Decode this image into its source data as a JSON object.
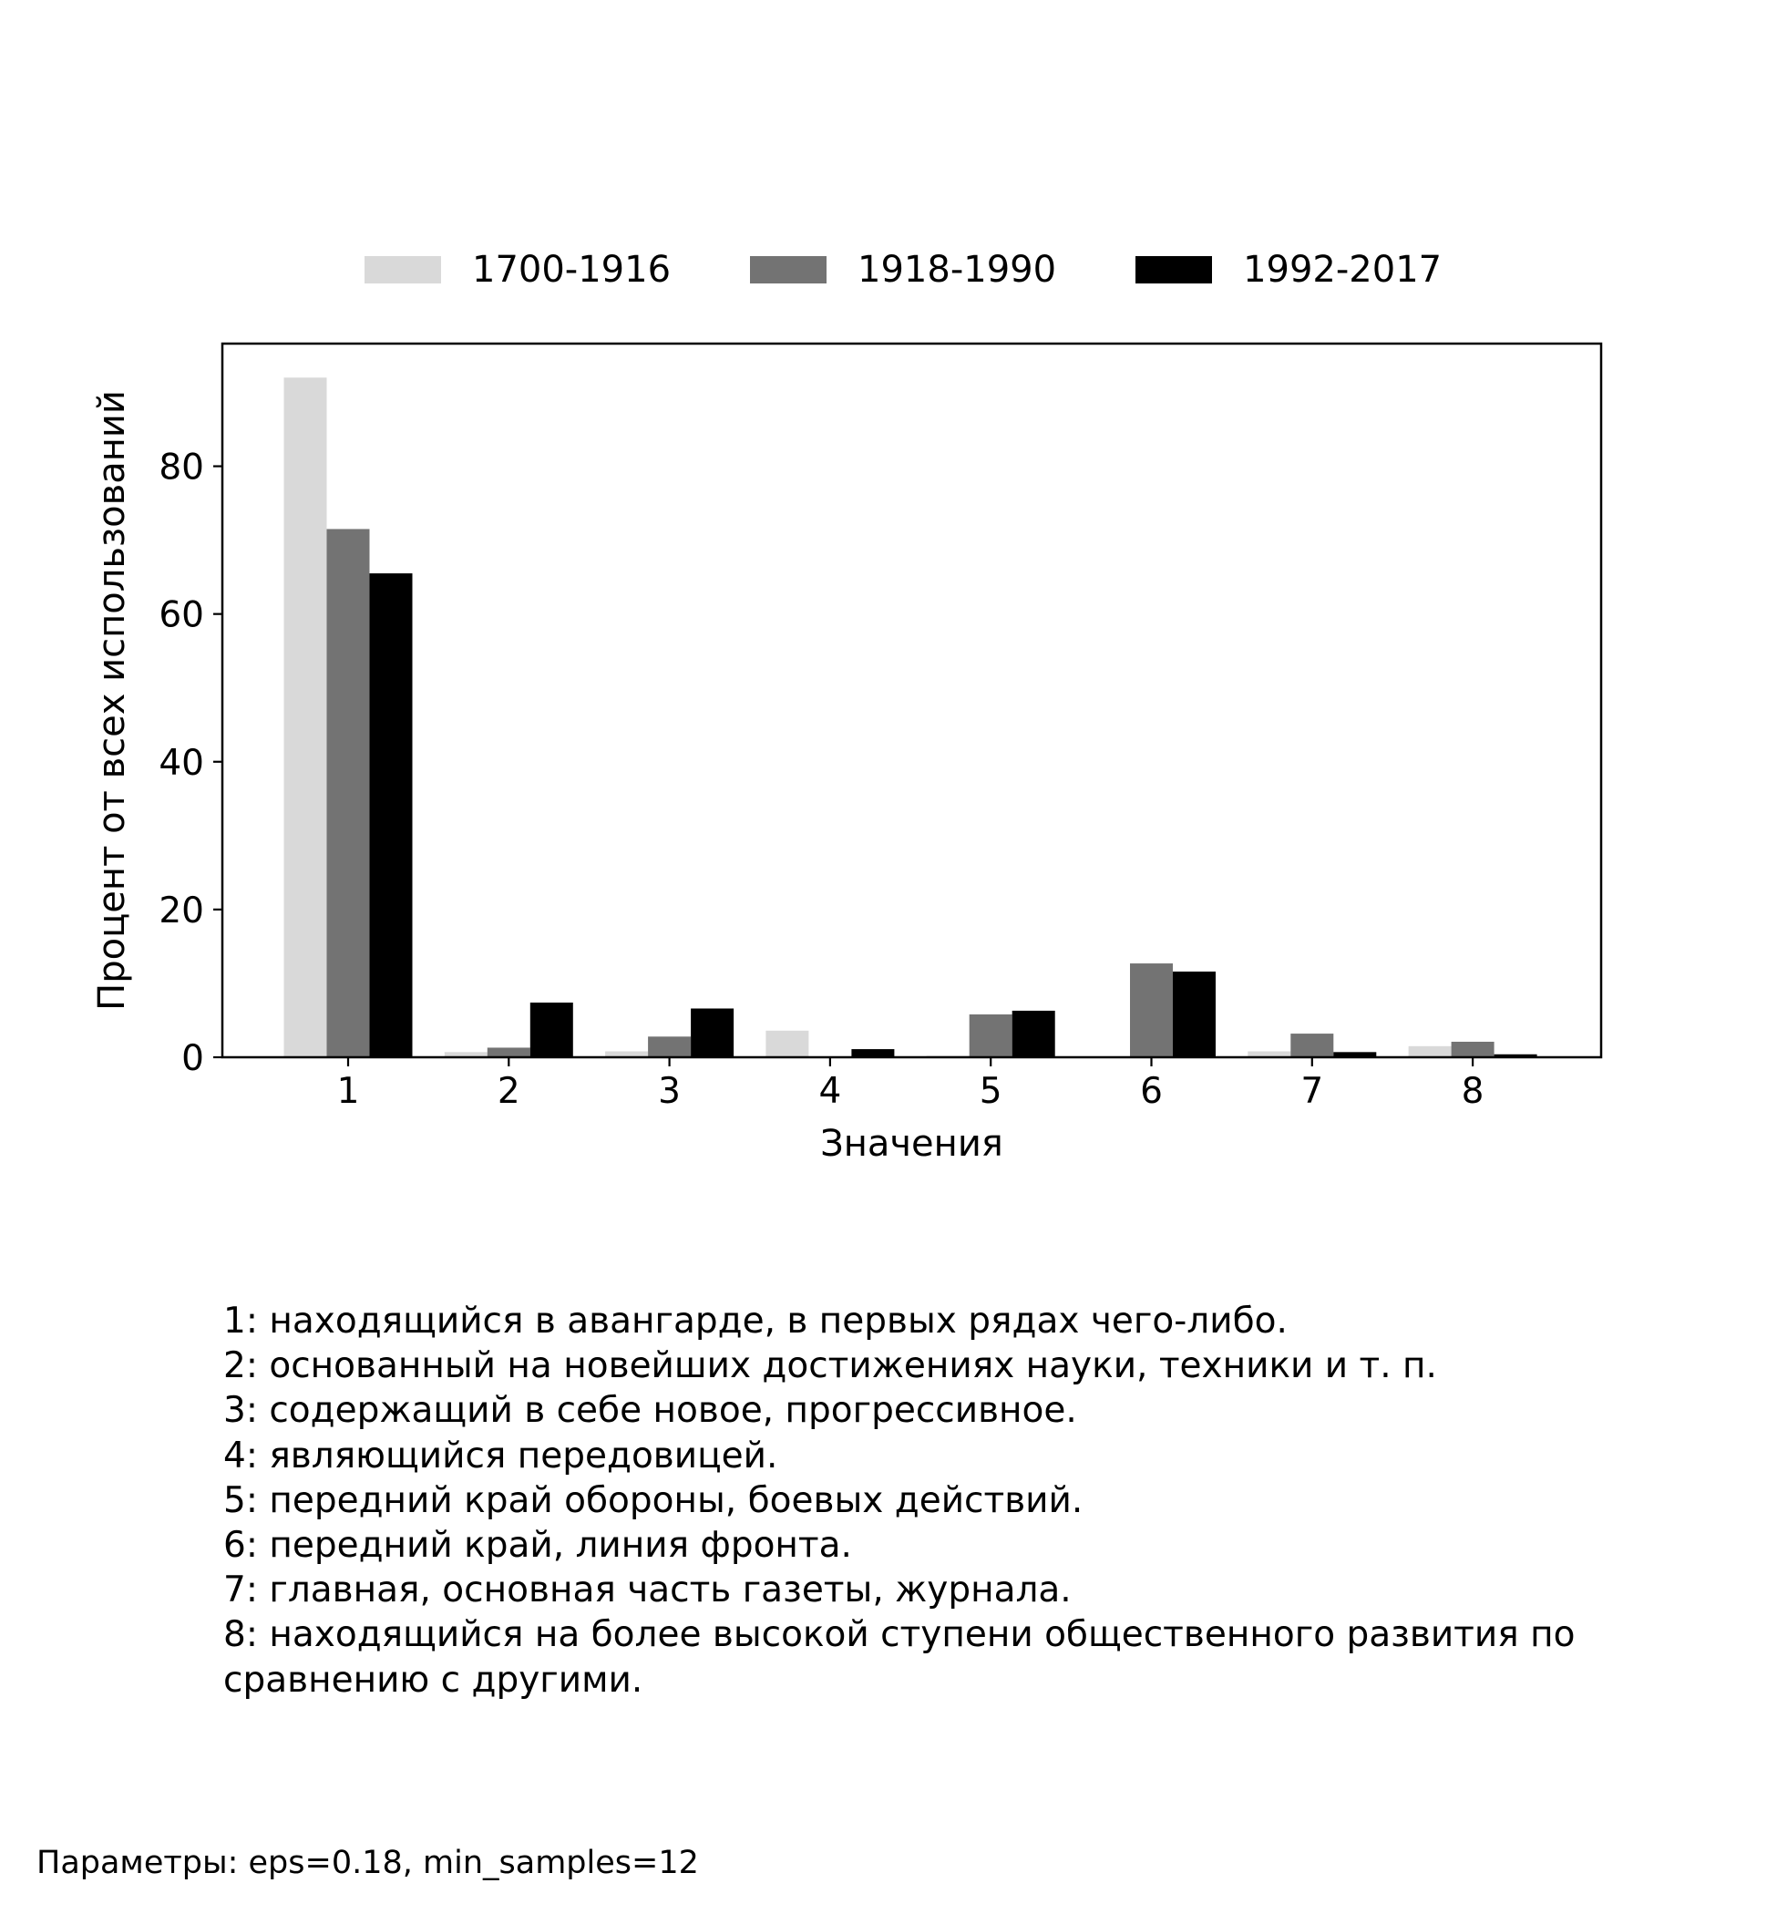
{
  "chart_data": {
    "type": "bar",
    "title": "",
    "xlabel": "Значения",
    "ylabel": "Процент от всех использований",
    "categories": [
      "1",
      "2",
      "3",
      "4",
      "5",
      "6",
      "7",
      "8"
    ],
    "series": [
      {
        "name": "1700-1916",
        "color": "#d9d9d9",
        "values": [
          92.0,
          0.7,
          0.8,
          3.6,
          0.2,
          0.1,
          0.8,
          1.5
        ]
      },
      {
        "name": "1918-1990",
        "color": "#737373",
        "values": [
          71.5,
          1.3,
          2.8,
          0.1,
          5.8,
          12.7,
          3.2,
          2.1
        ]
      },
      {
        "name": "1992-2017",
        "color": "#000000",
        "values": [
          65.5,
          7.4,
          6.6,
          1.1,
          6.3,
          11.6,
          0.7,
          0.4
        ]
      }
    ],
    "ylim": [
      0,
      96.6
    ],
    "yticks": [
      0,
      20,
      40,
      60,
      80
    ],
    "grid": false,
    "legend_position": "top-center"
  },
  "meanings": [
    "1: находящийся в авангарде, в первых рядах чего-либо.",
    "2: основанный на новейших достижениях науки, техники и т. п.",
    "3: содержащий в себе новое, прогрессивное.",
    "4: являющийся передовицей.",
    "5: передний край обороны, боевых действий.",
    "6: передний край, линия фронта.",
    "7: главная, основная часть газеты, журнала.",
    "8: находящийся на более высокой ступени общественного развития по сравнению с другими."
  ],
  "params": "Параметры: eps=0.18, min_samples=12"
}
